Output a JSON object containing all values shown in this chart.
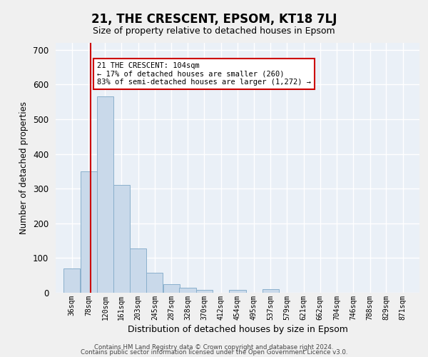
{
  "title": "21, THE CRESCENT, EPSOM, KT18 7LJ",
  "subtitle": "Size of property relative to detached houses in Epsom",
  "xlabel": "Distribution of detached houses by size in Epsom",
  "ylabel": "Number of detached properties",
  "bar_color": "#c9d9ea",
  "bar_edge_color": "#8ab0cc",
  "background_color": "#eaf0f7",
  "grid_color": "#ffffff",
  "vline_color": "#cc0000",
  "vline_x": 104,
  "categories": [
    "36sqm",
    "78sqm",
    "120sqm",
    "161sqm",
    "203sqm",
    "245sqm",
    "287sqm",
    "328sqm",
    "370sqm",
    "412sqm",
    "454sqm",
    "495sqm",
    "537sqm",
    "579sqm",
    "621sqm",
    "662sqm",
    "704sqm",
    "746sqm",
    "788sqm",
    "829sqm",
    "871sqm"
  ],
  "bin_edges": [
    36,
    78,
    120,
    161,
    203,
    245,
    287,
    328,
    370,
    412,
    454,
    495,
    537,
    579,
    621,
    662,
    704,
    746,
    788,
    829,
    871
  ],
  "bin_width": 42,
  "values": [
    70,
    350,
    565,
    310,
    128,
    57,
    25,
    14,
    8,
    0,
    8,
    0,
    10,
    0,
    0,
    0,
    0,
    0,
    0,
    0,
    0
  ],
  "ylim": [
    0,
    720
  ],
  "yticks": [
    0,
    100,
    200,
    300,
    400,
    500,
    600,
    700
  ],
  "annotation_text": "21 THE CRESCENT: 104sqm\n← 17% of detached houses are smaller (260)\n83% of semi-detached houses are larger (1,272) →",
  "annotation_box_color": "#ffffff",
  "annotation_box_edge": "#cc0000",
  "footer_line1": "Contains HM Land Registry data © Crown copyright and database right 2024.",
  "footer_line2": "Contains public sector information licensed under the Open Government Licence v3.0."
}
